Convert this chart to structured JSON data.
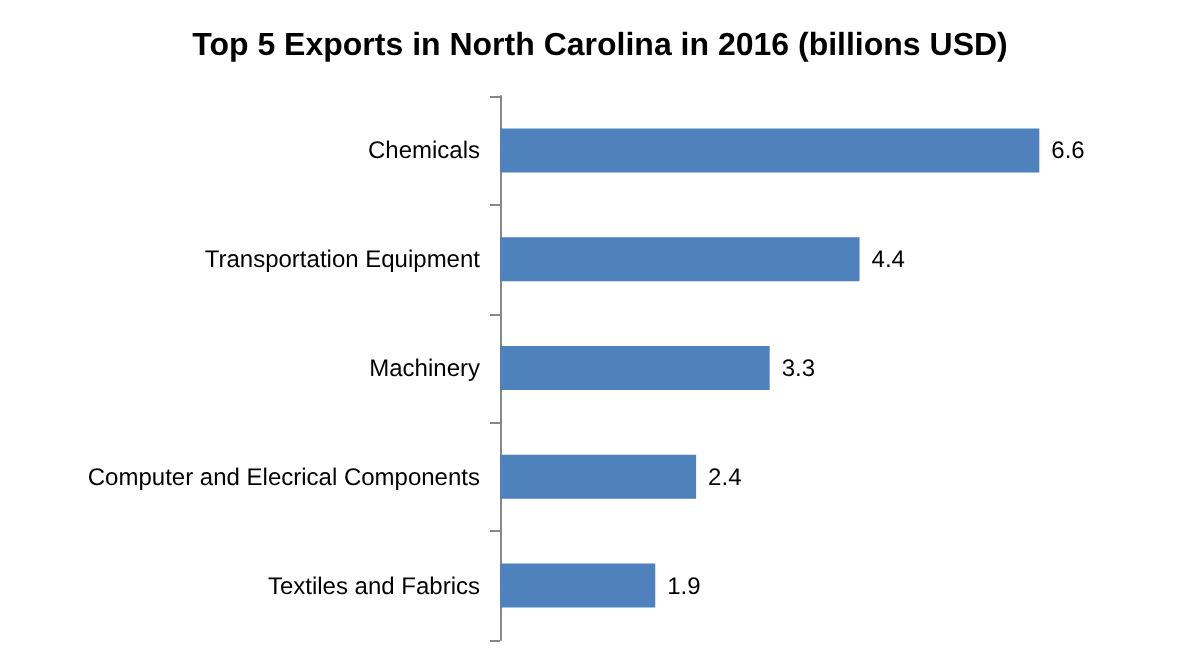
{
  "chart_data": {
    "type": "bar",
    "orientation": "horizontal",
    "title": "Top 5 Exports in North Carolina in 2016 (billions USD)",
    "categories": [
      "Chemicals",
      "Transportation Equipment",
      "Machinery",
      "Computer and Elecrical Components",
      "Textiles and Fabrics"
    ],
    "values": [
      6.6,
      4.4,
      3.3,
      2.4,
      1.9
    ],
    "color": "#4f81bd",
    "data_labels": true
  }
}
